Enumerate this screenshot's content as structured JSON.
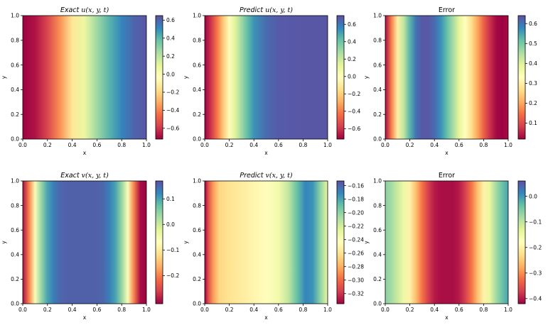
{
  "chart_data": [
    {
      "type": "heatmap",
      "title_prefix": "Exact",
      "title_var": "u",
      "title_args": "(x, y, t)",
      "italic": true,
      "xlabel": "x",
      "ylabel": "y",
      "xlim": [
        0,
        1
      ],
      "ylim": [
        0,
        1
      ],
      "xticks": [
        "0.0",
        "0.2",
        "0.4",
        "0.6",
        "0.8",
        "1.0"
      ],
      "yticks": [
        "0.0",
        "0.2",
        "0.4",
        "0.6",
        "0.8",
        "1.0"
      ],
      "colormap": "Spectral",
      "x_profile": [
        0.0,
        0.1,
        0.2,
        0.3,
        0.4,
        0.5,
        0.6,
        0.7,
        0.8,
        0.9,
        1.0
      ],
      "values": [
        -0.72,
        -0.68,
        -0.56,
        -0.37,
        -0.14,
        0.07,
        0.26,
        0.41,
        0.52,
        0.6,
        0.63
      ],
      "clim": [
        -0.72,
        0.65
      ],
      "colorbar_ticks": [
        0.6,
        0.4,
        0.2,
        0.0,
        -0.2,
        -0.4,
        -0.6
      ],
      "colorbar_tick_labels": [
        "0.6",
        "0.4",
        "0.2",
        "0.0",
        "−0.2",
        "−0.4",
        "−0.6"
      ]
    },
    {
      "type": "heatmap",
      "title_prefix": "Predict",
      "title_var": "u",
      "title_args": "(x, y, t)",
      "italic": true,
      "xlabel": "x",
      "ylabel": "y",
      "xlim": [
        0,
        1
      ],
      "ylim": [
        0,
        1
      ],
      "xticks": [
        "0.0",
        "0.2",
        "0.4",
        "0.6",
        "0.8",
        "1.0"
      ],
      "yticks": [
        "0.0",
        "0.2",
        "0.4",
        "0.6",
        "0.8",
        "1.0"
      ],
      "colormap": "Spectral",
      "x_profile": [
        0.0,
        0.05,
        0.1,
        0.15,
        0.2,
        0.25,
        0.3,
        0.35,
        0.4,
        0.5,
        0.6,
        0.8,
        1.0
      ],
      "values": [
        -0.72,
        -0.6,
        -0.42,
        -0.22,
        -0.02,
        0.15,
        0.3,
        0.43,
        0.53,
        0.63,
        0.67,
        0.68,
        0.68
      ],
      "clim": [
        -0.72,
        0.7
      ],
      "colorbar_ticks": [
        0.6,
        0.4,
        0.2,
        0.0,
        -0.2,
        -0.4,
        -0.6
      ],
      "colorbar_tick_labels": [
        "0.6",
        "0.4",
        "0.2",
        "0.0",
        "−0.2",
        "−0.4",
        "−0.6"
      ]
    },
    {
      "type": "heatmap",
      "title_prefix": "",
      "title_var": "",
      "title_args": "Error",
      "italic": false,
      "xlabel": "x",
      "ylabel": "y",
      "xlim": [
        0,
        1
      ],
      "ylim": [
        0,
        1
      ],
      "xticks": [
        "0.0",
        "0.2",
        "0.4",
        "0.6",
        "0.8",
        "1.0"
      ],
      "yticks": [
        "0.0",
        "0.2",
        "0.4",
        "0.6",
        "0.8",
        "1.0"
      ],
      "colormap": "Spectral",
      "x_profile": [
        0.0,
        0.05,
        0.1,
        0.15,
        0.2,
        0.25,
        0.3,
        0.35,
        0.4,
        0.45,
        0.5,
        0.55,
        0.6,
        0.65,
        0.7,
        0.75,
        0.8,
        0.85,
        0.9,
        0.95,
        1.0
      ],
      "values": [
        0.03,
        0.16,
        0.3,
        0.43,
        0.53,
        0.6,
        0.63,
        0.63,
        0.61,
        0.57,
        0.52,
        0.46,
        0.39,
        0.33,
        0.27,
        0.2,
        0.13,
        0.07,
        0.03,
        0.02,
        0.03
      ],
      "clim": [
        0.02,
        0.64
      ],
      "colorbar_ticks": [
        0.6,
        0.5,
        0.4,
        0.3,
        0.2,
        0.1
      ],
      "colorbar_tick_labels": [
        "0.6",
        "0.5",
        "0.4",
        "0.3",
        "0.2",
        "0.1"
      ]
    },
    {
      "type": "heatmap",
      "title_prefix": "Exact",
      "title_var": "v",
      "title_args": "(x, y, t)",
      "italic": true,
      "xlabel": "x",
      "ylabel": "y",
      "xlim": [
        0,
        1
      ],
      "ylim": [
        0,
        1
      ],
      "xticks": [
        "0.0",
        "0.2",
        "0.4",
        "0.6",
        "0.8",
        "1.0"
      ],
      "yticks": [
        "0.0",
        "0.2",
        "0.4",
        "0.6",
        "0.8",
        "1.0"
      ],
      "colormap": "Spectral",
      "x_profile": [
        0.0,
        0.05,
        0.1,
        0.15,
        0.2,
        0.25,
        0.3,
        0.35,
        0.4,
        0.45,
        0.5,
        0.55,
        0.6,
        0.65,
        0.7,
        0.75,
        0.8,
        0.85,
        0.9,
        0.95,
        1.0
      ],
      "values": [
        -0.3,
        -0.2,
        -0.06,
        0.04,
        0.1,
        0.13,
        0.15,
        0.155,
        0.155,
        0.155,
        0.155,
        0.155,
        0.155,
        0.15,
        0.13,
        0.1,
        0.04,
        -0.06,
        -0.2,
        -0.3,
        -0.31
      ],
      "clim": [
        -0.31,
        0.17
      ],
      "colorbar_ticks": [
        0.1,
        0.0,
        -0.1,
        -0.2
      ],
      "colorbar_tick_labels": [
        "0.1",
        "0.0",
        "−0.1",
        "−0.2"
      ]
    },
    {
      "type": "heatmap",
      "title_prefix": "Predict",
      "title_var": "v",
      "title_args": "(x, y, t)",
      "italic": true,
      "xlabel": "x",
      "ylabel": "y",
      "xlim": [
        0,
        1
      ],
      "ylim": [
        0,
        1
      ],
      "xticks": [
        "0.0",
        "0.2",
        "0.4",
        "0.6",
        "0.8",
        "1.0"
      ],
      "yticks": [
        "0.0",
        "0.2",
        "0.4",
        "0.6",
        "0.8",
        "1.0"
      ],
      "colormap": "Spectral",
      "x_profile": [
        0.0,
        0.03,
        0.07,
        0.12,
        0.2,
        0.3,
        0.4,
        0.5,
        0.6,
        0.68,
        0.75,
        0.82,
        0.88,
        0.94,
        1.0
      ],
      "values": [
        -0.335,
        -0.31,
        -0.285,
        -0.265,
        -0.26,
        -0.255,
        -0.25,
        -0.245,
        -0.235,
        -0.215,
        -0.19,
        -0.17,
        -0.175,
        -0.2,
        -0.23
      ],
      "clim": [
        -0.335,
        -0.153
      ],
      "colorbar_ticks": [
        -0.16,
        -0.18,
        -0.2,
        -0.22,
        -0.24,
        -0.26,
        -0.28,
        -0.3,
        -0.32
      ],
      "colorbar_tick_labels": [
        "−0.16",
        "−0.18",
        "−0.20",
        "−0.22",
        "−0.24",
        "−0.26",
        "−0.28",
        "−0.30",
        "−0.32"
      ]
    },
    {
      "type": "heatmap",
      "title_prefix": "",
      "title_var": "",
      "title_args": "Error",
      "italic": false,
      "xlabel": "x",
      "ylabel": "y",
      "xlim": [
        0,
        1
      ],
      "ylim": [
        0,
        1
      ],
      "xticks": [
        "0.0",
        "0.2",
        "0.4",
        "0.6",
        "0.8",
        "1.0"
      ],
      "yticks": [
        "0.0",
        "0.2",
        "0.4",
        "0.6",
        "0.8",
        "1.0"
      ],
      "colormap": "Spectral",
      "x_profile": [
        0.0,
        0.05,
        0.1,
        0.15,
        0.2,
        0.25,
        0.3,
        0.35,
        0.4,
        0.45,
        0.5,
        0.55,
        0.6,
        0.65,
        0.7,
        0.75,
        0.8,
        0.85,
        0.9,
        0.95,
        1.0
      ],
      "values": [
        -0.06,
        -0.08,
        -0.11,
        -0.15,
        -0.2,
        -0.26,
        -0.32,
        -0.37,
        -0.4,
        -0.41,
        -0.41,
        -0.41,
        -0.4,
        -0.37,
        -0.32,
        -0.26,
        -0.2,
        -0.14,
        -0.08,
        -0.04,
        -0.01
      ],
      "clim": [
        -0.42,
        0.06
      ],
      "colorbar_ticks": [
        0.0,
        -0.1,
        -0.2,
        -0.3,
        -0.4
      ],
      "colorbar_tick_labels": [
        "0.0",
        "−0.1",
        "−0.2",
        "−0.3",
        "−0.4"
      ]
    }
  ]
}
